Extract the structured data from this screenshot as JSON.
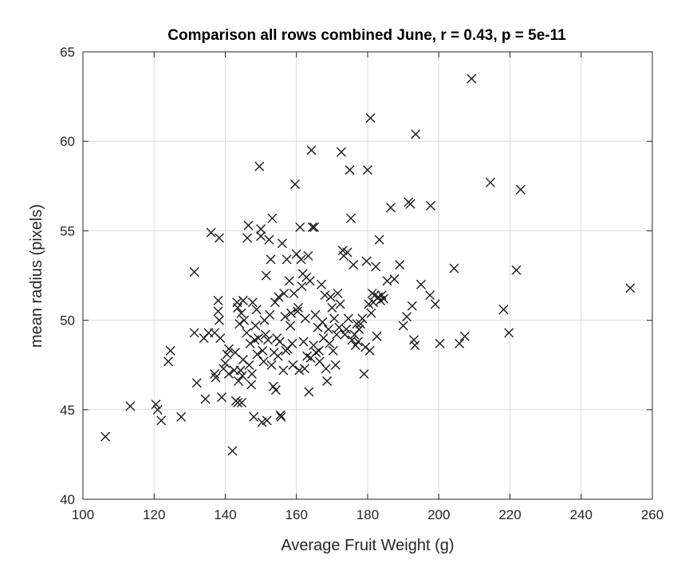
{
  "chart_data": {
    "type": "scatter",
    "title": "Comparison all rows combined June, r = 0.43, p = 5e-11",
    "xlabel": "Average Fruit Weight (g)",
    "ylabel": "mean radius (pixels)",
    "xlim": [
      100,
      260
    ],
    "ylim": [
      40,
      65
    ],
    "xticks": [
      "100",
      "120",
      "140",
      "160",
      "180",
      "200",
      "220",
      "240",
      "260"
    ],
    "yticks": [
      "40",
      "45",
      "50",
      "55",
      "60",
      "65"
    ],
    "grid": true,
    "marker": "x",
    "marker_color": "#1a1a1a",
    "series": [
      {
        "points": [
          [
            106.3,
            43.5
          ],
          [
            113.3,
            45.2
          ],
          [
            120.5,
            45.3
          ],
          [
            121,
            45
          ],
          [
            122,
            44.4
          ],
          [
            124,
            47.7
          ],
          [
            124.6,
            48.3
          ],
          [
            127.6,
            44.6
          ],
          [
            131.3,
            52.7
          ],
          [
            131.3,
            49.3
          ],
          [
            132,
            46.5
          ],
          [
            134,
            49
          ],
          [
            134.4,
            45.6
          ],
          [
            135.3,
            49.3
          ],
          [
            136,
            54.9
          ],
          [
            137,
            49.3
          ],
          [
            137,
            47
          ],
          [
            137.3,
            46.8
          ],
          [
            138,
            51.1
          ],
          [
            138,
            50.5
          ],
          [
            138.3,
            50
          ],
          [
            138.3,
            54.6
          ],
          [
            138.6,
            49
          ],
          [
            139,
            45.7
          ],
          [
            139.5,
            47.3
          ],
          [
            140,
            47.6
          ],
          [
            140.5,
            48.1
          ],
          [
            141,
            48.4
          ],
          [
            141,
            47
          ],
          [
            142,
            42.7
          ],
          [
            142.5,
            47.2
          ],
          [
            142.8,
            48.2
          ],
          [
            143,
            45.5
          ],
          [
            143.3,
            51
          ],
          [
            143.5,
            50.7
          ],
          [
            143.5,
            45.4
          ],
          [
            143.7,
            46.6
          ],
          [
            144,
            49.8
          ],
          [
            144.3,
            47.2
          ],
          [
            144.5,
            50.4
          ],
          [
            144.6,
            45.4
          ],
          [
            144.8,
            46.9
          ],
          [
            145,
            47.8
          ],
          [
            145,
            51.1
          ],
          [
            145.3,
            50
          ],
          [
            146,
            49.3
          ],
          [
            146.2,
            54.6
          ],
          [
            146.5,
            55.3
          ],
          [
            146.7,
            47.5
          ],
          [
            147,
            48.7
          ],
          [
            147.3,
            46.4
          ],
          [
            147.5,
            47
          ],
          [
            147.7,
            51
          ],
          [
            148,
            44.6
          ],
          [
            148.3,
            48.9
          ],
          [
            148.5,
            49.7
          ],
          [
            148.8,
            50.6
          ],
          [
            149,
            48.1
          ],
          [
            149.3,
            49
          ],
          [
            149.6,
            58.6
          ],
          [
            150,
            55.1
          ],
          [
            150,
            54.7
          ],
          [
            150.3,
            44.3
          ],
          [
            150.5,
            48.3
          ],
          [
            150.8,
            47.7
          ],
          [
            151,
            50
          ],
          [
            151.3,
            49.2
          ],
          [
            151.5,
            52.5
          ],
          [
            151.7,
            44.4
          ],
          [
            152,
            48.9
          ],
          [
            152.3,
            54.5
          ],
          [
            152.5,
            50.3
          ],
          [
            152.8,
            53.4
          ],
          [
            153,
            47.5
          ],
          [
            153.2,
            55.7
          ],
          [
            153.5,
            46.3
          ],
          [
            153.7,
            48.2
          ],
          [
            154,
            51
          ],
          [
            154.2,
            46.1
          ],
          [
            154.5,
            49
          ],
          [
            154.8,
            48
          ],
          [
            155,
            51.3
          ],
          [
            155.3,
            48.8
          ],
          [
            155.5,
            44.7
          ],
          [
            155.7,
            44.6
          ],
          [
            156,
            54.3
          ],
          [
            156.3,
            47.2
          ],
          [
            156.5,
            51.5
          ],
          [
            156.8,
            50.2
          ],
          [
            157,
            48.3
          ],
          [
            157.3,
            53.4
          ],
          [
            157.5,
            48.4
          ],
          [
            158,
            52.2
          ],
          [
            158.3,
            49.7
          ],
          [
            158.5,
            50.4
          ],
          [
            158.8,
            48.7
          ],
          [
            159,
            47.5
          ],
          [
            159.3,
            51.5
          ],
          [
            159.6,
            57.6
          ],
          [
            160,
            53.7
          ],
          [
            160.3,
            50.5
          ],
          [
            160.5,
            50.7
          ],
          [
            160.8,
            47.2
          ],
          [
            161,
            55.2
          ],
          [
            161.3,
            53.4
          ],
          [
            161.5,
            51.9
          ],
          [
            161.8,
            52.6
          ],
          [
            162,
            48.8
          ],
          [
            162.3,
            47.3
          ],
          [
            162.5,
            50.1
          ],
          [
            162.8,
            52.4
          ],
          [
            163,
            48
          ],
          [
            163.3,
            53.6
          ],
          [
            163.5,
            46
          ],
          [
            163.8,
            52.2
          ],
          [
            164,
            47.9
          ],
          [
            164.2,
            59.5
          ],
          [
            164.5,
            55.2
          ],
          [
            164.8,
            48.6
          ],
          [
            165,
            55.2
          ],
          [
            165.3,
            50.3
          ],
          [
            165.5,
            48.2
          ],
          [
            166,
            49.6
          ],
          [
            166.3,
            48.3
          ],
          [
            166.5,
            47.7
          ],
          [
            167,
            52
          ],
          [
            167.3,
            49.9
          ],
          [
            167.6,
            49
          ],
          [
            168,
            51.4
          ],
          [
            168.3,
            47.3
          ],
          [
            168.6,
            46.6
          ],
          [
            169,
            49.5
          ],
          [
            169.3,
            48.7
          ],
          [
            169.6,
            51.3
          ],
          [
            170,
            50.7
          ],
          [
            170.3,
            48.3
          ],
          [
            170.6,
            50.1
          ],
          [
            171,
            47.5
          ],
          [
            171.3,
            49.2
          ],
          [
            171.6,
            51.5
          ],
          [
            172,
            49.6
          ],
          [
            172.3,
            50.9
          ],
          [
            172.6,
            59.4
          ],
          [
            173,
            53.9
          ],
          [
            173.3,
            53.6
          ],
          [
            173.6,
            49.2
          ],
          [
            174,
            49.5
          ],
          [
            174.3,
            53.8
          ],
          [
            174.6,
            50.1
          ],
          [
            175,
            58.4
          ],
          [
            175.3,
            55.7
          ],
          [
            175.6,
            48.9
          ],
          [
            176,
            53.1
          ],
          [
            176.3,
            49.2
          ],
          [
            176.6,
            48.6
          ],
          [
            177,
            49.8
          ],
          [
            177.3,
            48.8
          ],
          [
            177.6,
            49.5
          ],
          [
            178,
            49.8
          ],
          [
            178.5,
            50.1
          ],
          [
            179,
            47
          ],
          [
            179.4,
            48.5
          ],
          [
            179.7,
            53.3
          ],
          [
            180,
            58.4
          ],
          [
            180.3,
            50.9
          ],
          [
            180.6,
            48.3
          ],
          [
            180.8,
            61.3
          ],
          [
            181,
            50.4
          ],
          [
            181.3,
            51.5
          ],
          [
            181.6,
            51
          ],
          [
            182,
            51.4
          ],
          [
            182.3,
            53
          ],
          [
            182.6,
            49.1
          ],
          [
            183,
            51.3
          ],
          [
            183.3,
            54.5
          ],
          [
            183.6,
            51.1
          ],
          [
            184,
            51.4
          ],
          [
            184.5,
            51.2
          ],
          [
            185.5,
            52.2
          ],
          [
            186.5,
            56.3
          ],
          [
            187.5,
            52.3
          ],
          [
            189,
            53.1
          ],
          [
            190,
            49.7
          ],
          [
            191,
            50.2
          ],
          [
            191.5,
            56.6
          ],
          [
            192,
            56.5
          ],
          [
            192.5,
            50.8
          ],
          [
            193,
            48.9
          ],
          [
            193.3,
            48.6
          ],
          [
            193.5,
            60.4
          ],
          [
            195,
            52
          ],
          [
            197.5,
            51.4
          ],
          [
            197.7,
            56.4
          ],
          [
            199,
            50.9
          ],
          [
            200.3,
            48.7
          ],
          [
            204.3,
            52.9
          ],
          [
            205.8,
            48.7
          ],
          [
            207.3,
            49.1
          ],
          [
            209.2,
            63.5
          ],
          [
            214.5,
            57.7
          ],
          [
            218.2,
            50.6
          ],
          [
            219.7,
            49.3
          ],
          [
            221.8,
            52.8
          ],
          [
            223,
            57.3
          ],
          [
            253.8,
            51.8
          ]
        ]
      }
    ]
  }
}
